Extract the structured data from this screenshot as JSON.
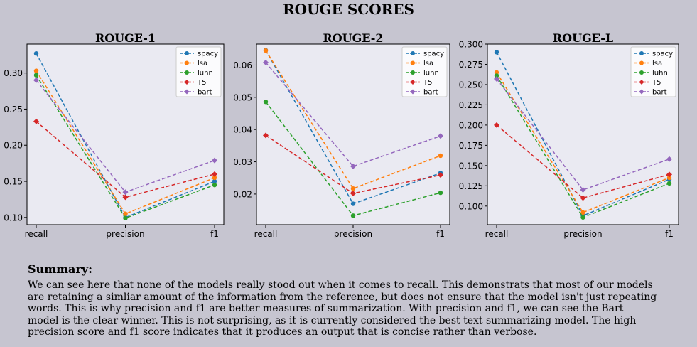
{
  "title": "ROUGE SCORES",
  "legend_placement": "upper right",
  "series_styles": [
    {
      "name": "spacy",
      "color": "#1f77b4",
      "marker": "circle"
    },
    {
      "name": "lsa",
      "color": "#ff7f0e",
      "marker": "circle"
    },
    {
      "name": "luhn",
      "color": "#2ca02c",
      "marker": "circle"
    },
    {
      "name": "T5",
      "color": "#d62728",
      "marker": "diamond"
    },
    {
      "name": "bart",
      "color": "#9467bd",
      "marker": "diamond"
    }
  ],
  "chart_data": [
    {
      "type": "line",
      "title": "ROUGE-1",
      "categories": [
        "recall",
        "precision",
        "f1"
      ],
      "ylim": [
        0.09,
        0.34
      ],
      "yticks": [
        "0.10",
        "0.15",
        "0.20",
        "0.25",
        "0.30"
      ],
      "grid": false,
      "series": [
        {
          "name": "spacy",
          "values": [
            0.327,
            0.1,
            0.15
          ]
        },
        {
          "name": "lsa",
          "values": [
            0.303,
            0.105,
            0.155
          ]
        },
        {
          "name": "luhn",
          "values": [
            0.297,
            0.099,
            0.145
          ]
        },
        {
          "name": "T5",
          "values": [
            0.233,
            0.128,
            0.16
          ]
        },
        {
          "name": "bart",
          "values": [
            0.29,
            0.135,
            0.179
          ]
        }
      ]
    },
    {
      "type": "line",
      "title": "ROUGE-2",
      "categories": [
        "recall",
        "precision",
        "f1"
      ],
      "ylim": [
        0.0105,
        0.0665
      ],
      "yticks": [
        "0.02",
        "0.03",
        "0.04",
        "0.05",
        "0.06"
      ],
      "grid": false,
      "series": [
        {
          "name": "spacy",
          "values": [
            0.0646,
            0.017,
            0.0265
          ]
        },
        {
          "name": "lsa",
          "values": [
            0.0645,
            0.0217,
            0.0319
          ]
        },
        {
          "name": "luhn",
          "values": [
            0.0486,
            0.0133,
            0.0204
          ]
        },
        {
          "name": "T5",
          "values": [
            0.0382,
            0.0202,
            0.0259
          ]
        },
        {
          "name": "bart",
          "values": [
            0.0608,
            0.0286,
            0.038
          ]
        }
      ]
    },
    {
      "type": "line",
      "title": "ROUGE-L",
      "categories": [
        "recall",
        "precision",
        "f1"
      ],
      "ylim": [
        0.077,
        0.3
      ],
      "yticks": [
        "0.100",
        "0.125",
        "0.150",
        "0.175",
        "0.200",
        "0.225",
        "0.250",
        "0.275",
        "0.300"
      ],
      "grid": false,
      "series": [
        {
          "name": "spacy",
          "values": [
            0.29,
            0.088,
            0.133
          ]
        },
        {
          "name": "lsa",
          "values": [
            0.265,
            0.092,
            0.135
          ]
        },
        {
          "name": "luhn",
          "values": [
            0.261,
            0.086,
            0.128
          ]
        },
        {
          "name": "T5",
          "values": [
            0.2,
            0.11,
            0.139
          ]
        },
        {
          "name": "bart",
          "values": [
            0.257,
            0.12,
            0.158
          ]
        }
      ]
    }
  ],
  "summary": {
    "heading": "Summary:",
    "text": "We can see here that none of the models really stood out when it comes to recall. This demonstrats that most of our models\n are retaining a simliar amount of the information from the reference, but does not ensure that the model isn't just repeating\n words. This is why precision and f1 are better measures of summarization. With precision and f1, we can see the Bart\n model is the clear winner. This is not surprising, as it is currently considered the best text summarizing model. The high\n precision score and f1 score indicates that it produces an output that is concise rather than verbose."
  }
}
